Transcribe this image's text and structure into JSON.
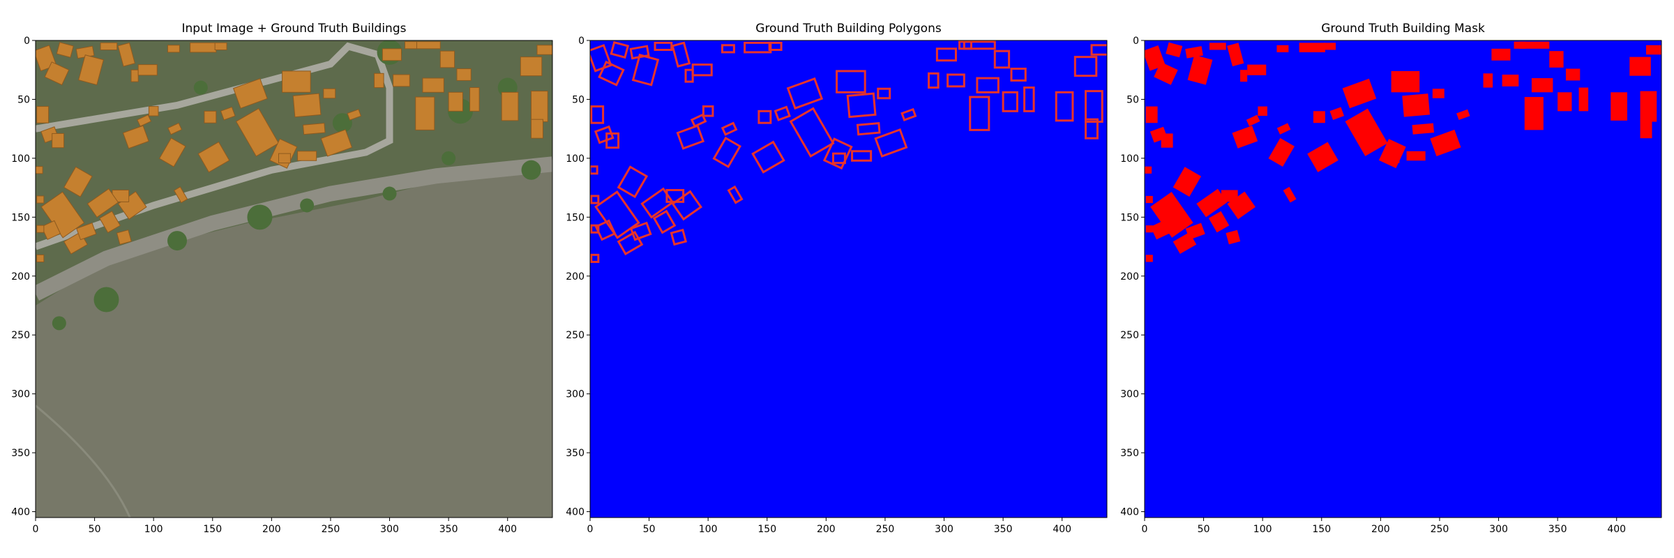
{
  "figure": {
    "panels": [
      {
        "title": "Input Image + Ground Truth Buildings",
        "kind": "aerial-photo"
      },
      {
        "title": "Ground Truth Building Polygons",
        "kind": "polygon-outlines"
      },
      {
        "title": "Ground Truth Building Mask",
        "kind": "filled-mask"
      }
    ],
    "x_ticks": [
      "0",
      "50",
      "100",
      "150",
      "200",
      "250",
      "300",
      "350",
      "400"
    ],
    "y_ticks": [
      "0",
      "50",
      "100",
      "150",
      "200",
      "250",
      "300",
      "350",
      "400"
    ],
    "image_width": 438,
    "image_height": 405,
    "colors": {
      "background": "#0000ff",
      "building": "#ff0000",
      "polygon_outline": "#e8332a",
      "ground": "#777868",
      "roof": "#c5802f",
      "tree": "#4c6e3a",
      "road": "#8f8e84"
    }
  }
}
